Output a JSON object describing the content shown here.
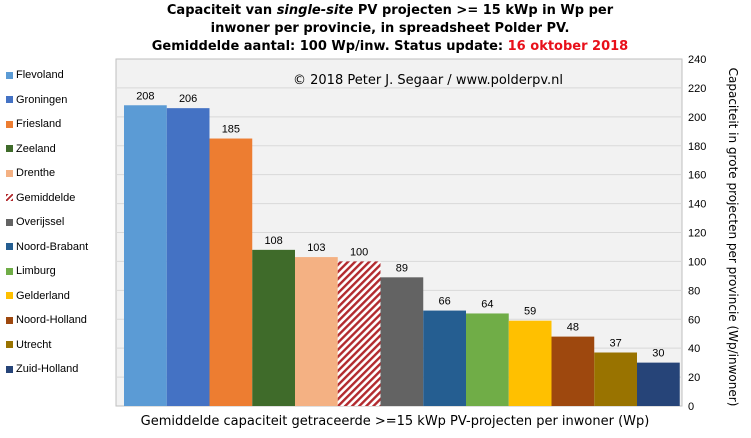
{
  "title": {
    "line1_pre": "Capaciteit van ",
    "line1_ital": "single-site",
    "line1_post": " PV projecten >= 15 kWp in Wp per",
    "line2": "inwoner per provincie, in spreadsheet Polder PV.",
    "line3_pre": "Gemiddelde aantal: 100 Wp/inw. Status update: ",
    "line3_date": "16 oktober 2018"
  },
  "copyright": "© 2018 Peter J. Segaar / www.polderpv.nl",
  "colors": {
    "average_hatch": "#b22a2e",
    "plot_background": "#f2f2f2",
    "grid": "#d9d9d9",
    "title_date": "#e8101a"
  },
  "chart_data": {
    "type": "bar",
    "xlabel": "Gemiddelde capaciteit getraceerde >=15 kWp PV-projecten per inwoner (Wp)",
    "ylabel": "Capaciteit in grote projecten per provincie (Wp/inwoner)",
    "ylim": [
      0,
      240
    ],
    "yticks": [
      0,
      20,
      40,
      60,
      80,
      100,
      120,
      140,
      160,
      180,
      200,
      220,
      240
    ],
    "y_axis_side": "right",
    "grid": true,
    "legend_position": "left",
    "categories": [
      "Flevoland",
      "Groningen",
      "Friesland",
      "Zeeland",
      "Drenthe",
      "Gemiddelde",
      "Overijssel",
      "Noord-Brabant",
      "Limburg",
      "Gelderland",
      "Noord-Holland",
      "Utrecht",
      "Zuid-Holland"
    ],
    "values": [
      208,
      206,
      185,
      108,
      103,
      100,
      89,
      66,
      64,
      59,
      48,
      37,
      30
    ],
    "colors": [
      "#5b9bd5",
      "#4472c4",
      "#ed7d31",
      "#3f6b2a",
      "#f4b183",
      "hatch",
      "#636363",
      "#255e91",
      "#70ad47",
      "#ffc000",
      "#9e480e",
      "#997300",
      "#264478"
    ]
  }
}
